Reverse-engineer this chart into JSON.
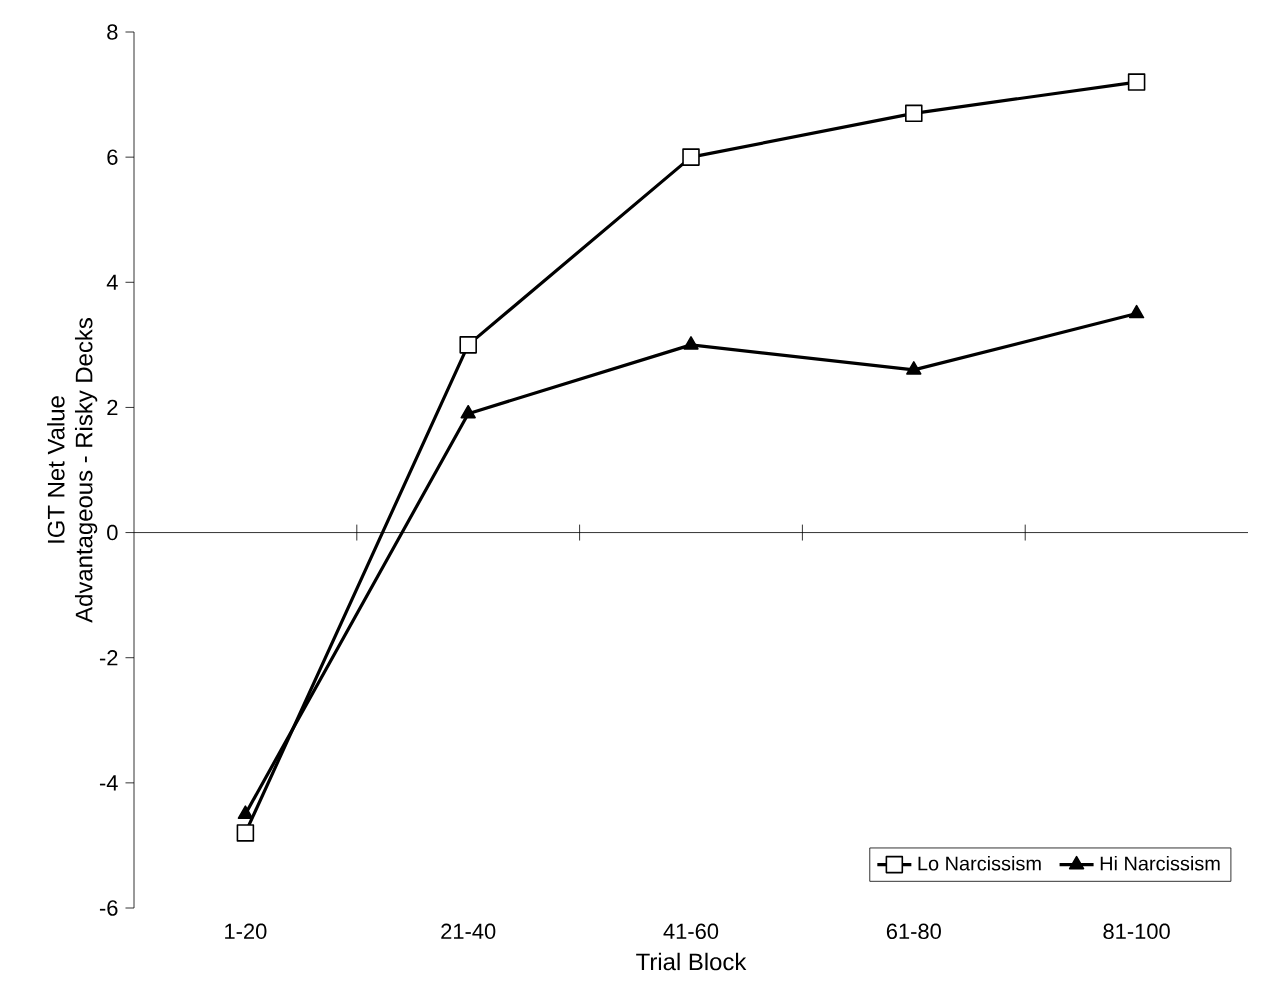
{
  "chart_data": {
    "type": "line",
    "xlabel": "Trial Block",
    "ylabel": [
      "IGT Net Value",
      "Advantageous - Risky Decks"
    ],
    "categories": [
      "1-20",
      "21-40",
      "41-60",
      "61-80",
      "81-100"
    ],
    "series": [
      {
        "name": "Lo Narcissism",
        "color": "#000000",
        "marker": "square",
        "values": [
          -4.8,
          3.0,
          6.0,
          6.7,
          7.2
        ]
      },
      {
        "name": "Hi Narcissism",
        "color": "#000000",
        "marker": "triangle",
        "values": [
          -4.5,
          1.9,
          3.0,
          2.6,
          3.5
        ]
      }
    ],
    "ylim": [
      -6,
      8
    ],
    "yticks": [
      -6,
      -4,
      -2,
      0,
      2,
      4,
      6,
      8
    ],
    "ref_lines": [
      {
        "axis": "y",
        "value": 0
      }
    ],
    "legend": "bottom right",
    "grid": false,
    "line_style": "solid"
  }
}
